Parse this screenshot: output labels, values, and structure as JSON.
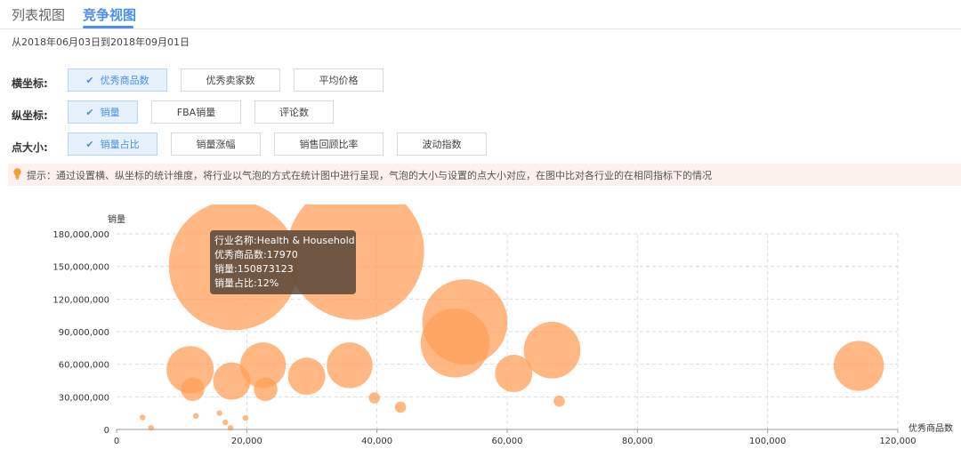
{
  "tabs": [
    {
      "label": "列表视图",
      "active": false
    },
    {
      "label": "竞争视图",
      "active": true
    }
  ],
  "date_range": "从2018年06月03日到2018年09月01日",
  "controls": {
    "x_axis": {
      "label": "横坐标:",
      "options": [
        "优秀商品数",
        "优秀卖家数",
        "平均价格"
      ],
      "selected": "优秀商品数"
    },
    "y_axis": {
      "label": "纵坐标:",
      "options": [
        "销量",
        "FBA销量",
        "评论数"
      ],
      "selected": "销量"
    },
    "size": {
      "label": "点大小:",
      "options": [
        "销量占比",
        "销量涨幅",
        "销售回顾比率",
        "波动指数"
      ],
      "selected": "销量占比"
    }
  },
  "check_mark": "✔",
  "hint": {
    "icon": "lightbulb-icon",
    "text": "提示：通过设置横、纵坐标的统计维度，将行业以气泡的方式在统计图中进行呈现，气泡的大小与设置的点大小对应，在图中比对各行业的在相同指标下的情况"
  },
  "tooltip": {
    "lines": [
      "行业名称:Health & Household",
      "优秀商品数:17970",
      "销量:150873123",
      "销量占比:12%"
    ]
  },
  "colors": {
    "accent": "#4a8ef0",
    "bubble": "#ffa05a",
    "grid": "#dddddd"
  },
  "chart_data": {
    "type": "scatter",
    "ylabel": "销量",
    "xlabel": "优秀商品数",
    "xlim": [
      0,
      120000
    ],
    "ylim": [
      0,
      180000000
    ],
    "xticks": [
      0,
      20000,
      40000,
      60000,
      80000,
      100000,
      120000
    ],
    "xtick_labels": [
      "0",
      "20,000",
      "40,000",
      "60,000",
      "80,000",
      "100,000",
      "120,000"
    ],
    "yticks": [
      0,
      30000000,
      60000000,
      90000000,
      120000000,
      150000000,
      180000000
    ],
    "ytick_labels": [
      "0",
      "30,000,000",
      "60,000,000",
      "90,000,000",
      "120,000,000",
      "150,000,000",
      "180,000,000"
    ],
    "grid": true,
    "points": [
      {
        "x": 17970,
        "y": 150873123,
        "size_pct": 12
      },
      {
        "x": 36700,
        "y": 164000000,
        "size_pct": 13.5
      },
      {
        "x": 53500,
        "y": 99000000,
        "size_pct": 5.2
      },
      {
        "x": 52000,
        "y": 79500000,
        "size_pct": 3.4
      },
      {
        "x": 66900,
        "y": 73000000,
        "size_pct": 2.3
      },
      {
        "x": 114000,
        "y": 58500000,
        "size_pct": 1.8
      },
      {
        "x": 11300,
        "y": 55000000,
        "size_pct": 1.6
      },
      {
        "x": 22500,
        "y": 59000000,
        "size_pct": 1.5
      },
      {
        "x": 35800,
        "y": 59000000,
        "size_pct": 1.5
      },
      {
        "x": 17700,
        "y": 44500000,
        "size_pct": 1.0
      },
      {
        "x": 29200,
        "y": 49000000,
        "size_pct": 1.0
      },
      {
        "x": 61000,
        "y": 51500000,
        "size_pct": 1.0
      },
      {
        "x": 11700,
        "y": 37000000,
        "size_pct": 0.4
      },
      {
        "x": 22900,
        "y": 37000000,
        "size_pct": 0.4
      },
      {
        "x": 39600,
        "y": 29000000,
        "size_pct": 0.09
      },
      {
        "x": 43600,
        "y": 20500000,
        "size_pct": 0.09
      },
      {
        "x": 68000,
        "y": 26000000,
        "size_pct": 0.09
      },
      {
        "x": 4000,
        "y": 11000000,
        "size_pct": 0.02
      },
      {
        "x": 5300,
        "y": 1500000,
        "size_pct": 0.02
      },
      {
        "x": 12200,
        "y": 12500000,
        "size_pct": 0.02
      },
      {
        "x": 15800,
        "y": 15000000,
        "size_pct": 0.02
      },
      {
        "x": 16700,
        "y": 6500000,
        "size_pct": 0.02
      },
      {
        "x": 17500,
        "y": 1500000,
        "size_pct": 0.02
      },
      {
        "x": 19800,
        "y": 10500000,
        "size_pct": 0.02
      }
    ]
  }
}
